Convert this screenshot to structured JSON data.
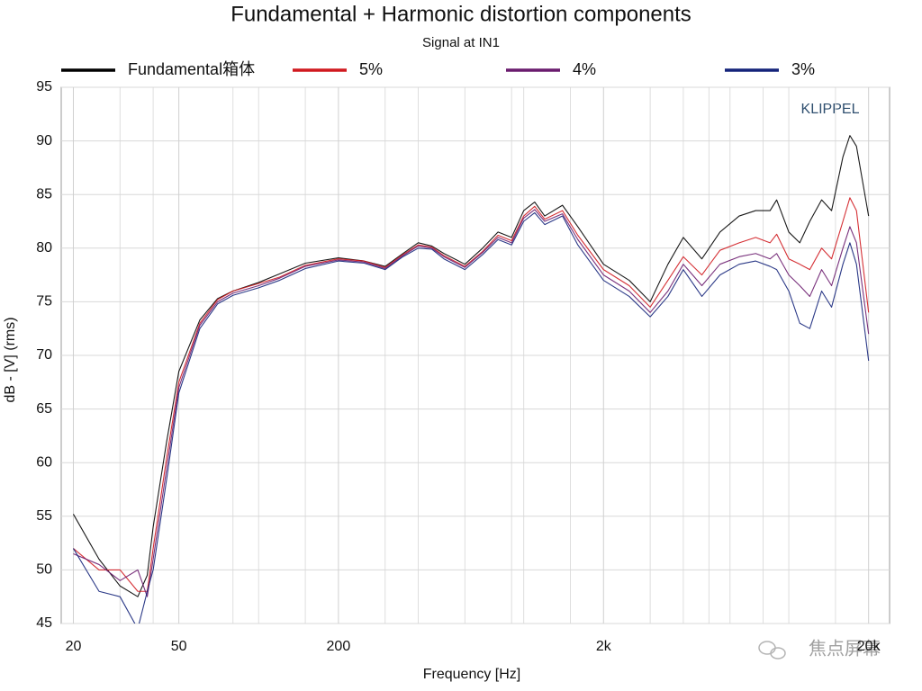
{
  "chart_data": {
    "type": "line",
    "title": "Fundamental + Harmonic distortion components",
    "subtitle": "Signal at IN1",
    "x_label": "Frequency [Hz]",
    "y_label": "dB - [V] (rms)",
    "annotation": "KLIPPEL",
    "watermark": "焦点屏幕",
    "xscale": "log",
    "grid": true,
    "xlim": [
      18,
      24000
    ],
    "ylim": [
      45,
      95
    ],
    "xticks": [
      20,
      50,
      200,
      {
        "value": 2000,
        "label": "2k"
      },
      {
        "value": 20000,
        "label": "20k"
      }
    ],
    "xgrid": [
      30,
      40,
      80,
      100,
      150,
      300,
      400,
      600,
      900,
      1000,
      1500,
      3000,
      4000,
      5000,
      6000,
      8000,
      10000,
      15000
    ],
    "yticks": [
      45,
      50,
      55,
      60,
      65,
      70,
      75,
      80,
      85,
      90,
      95
    ],
    "x": [
      20,
      25,
      30,
      35,
      38,
      40,
      45,
      50,
      60,
      70,
      80,
      100,
      120,
      150,
      200,
      250,
      300,
      350,
      400,
      450,
      500,
      600,
      700,
      800,
      900,
      1000,
      1100,
      1200,
      1400,
      1600,
      2000,
      2500,
      3000,
      3500,
      4000,
      4700,
      5500,
      6500,
      7500,
      8500,
      9000,
      10000,
      11000,
      12000,
      13300,
      14500,
      16000,
      17000,
      18000,
      20000
    ],
    "series": [
      {
        "name": "Fundamental箱体",
        "color": "#000000",
        "values": [
          55.2,
          51,
          48.5,
          47.5,
          49.5,
          54,
          62,
          68.5,
          73.3,
          75.3,
          76,
          76.8,
          77.6,
          78.6,
          79.1,
          78.8,
          78.3,
          79.5,
          80.5,
          80.2,
          79.5,
          78.5,
          80,
          81.5,
          81,
          83.5,
          84.3,
          83,
          84,
          82,
          78.5,
          77,
          75,
          78.5,
          81,
          79,
          81.5,
          83,
          83.5,
          83.5,
          84.5,
          81.5,
          80.5,
          82.5,
          84.5,
          83.5,
          88.5,
          90.5,
          89.5,
          83
        ]
      },
      {
        "name": "5%",
        "color": "#d0191f",
        "values": [
          52,
          50,
          50,
          48,
          48,
          52,
          60.5,
          67.5,
          73,
          75.2,
          76,
          76.7,
          77.3,
          78.4,
          79,
          78.8,
          78.2,
          79.4,
          80.3,
          80.1,
          79.3,
          78.3,
          79.7,
          81.2,
          80.7,
          83,
          83.9,
          82.7,
          83.5,
          81.2,
          78,
          76.5,
          74.5,
          77,
          79.2,
          77.5,
          79.8,
          80.5,
          81,
          80.5,
          81.3,
          79,
          78.5,
          78,
          80,
          79,
          82.5,
          84.7,
          83.5,
          74
        ]
      },
      {
        "name": "4%",
        "color": "#6a1b6e",
        "values": [
          51.5,
          50.5,
          49,
          50,
          47.5,
          51,
          59.5,
          67,
          72.8,
          75,
          75.8,
          76.5,
          77.2,
          78.3,
          78.9,
          78.7,
          78.1,
          79.3,
          80.2,
          80,
          79.2,
          78.2,
          79.6,
          81,
          80.5,
          82.8,
          83.6,
          82.5,
          83.2,
          80.8,
          77.5,
          76,
          74,
          76,
          78.5,
          76.5,
          78.5,
          79.2,
          79.5,
          79,
          79.5,
          77.5,
          76.5,
          75.5,
          78,
          76.5,
          80,
          82,
          80.5,
          72
        ]
      },
      {
        "name": "3%",
        "color": "#14237a",
        "values": [
          52,
          48,
          47.5,
          44.5,
          48,
          50,
          58.5,
          66.5,
          72.5,
          74.8,
          75.6,
          76.3,
          77,
          78.1,
          78.8,
          78.6,
          78,
          79.2,
          80,
          79.9,
          79,
          78,
          79.4,
          80.8,
          80.3,
          82.5,
          83.3,
          82.2,
          83,
          80.3,
          77,
          75.5,
          73.6,
          75.5,
          78,
          75.5,
          77.5,
          78.5,
          78.8,
          78.3,
          78,
          76,
          73,
          72.5,
          76,
          74.5,
          78.5,
          80.5,
          78.5,
          69.5
        ]
      }
    ]
  }
}
